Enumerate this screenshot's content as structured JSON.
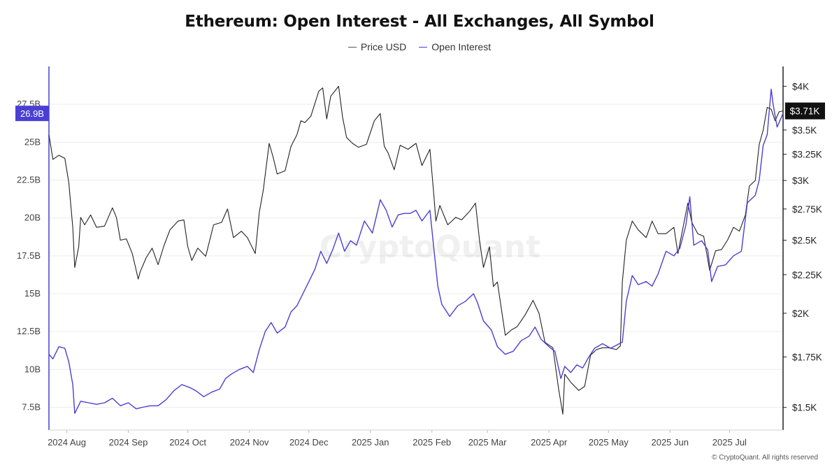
{
  "chart_data": {
    "type": "line",
    "title": "Ethereum: Open Interest - All Exchanges, All Symbol",
    "watermark": "CryptoQuant",
    "footer": "© CryptoQuant. All rights reserved",
    "x_labels": [
      "2024 Aug",
      "2024 Sep",
      "2024 Oct",
      "2024 Nov",
      "2024 Dec",
      "2025 Jan",
      "2025 Feb",
      "2025 Mar",
      "2025 Apr",
      "2025 May",
      "2025 Jun",
      "2025 Jul"
    ],
    "x_range": [
      "2024-07-23",
      "2025-07-28"
    ],
    "y_left_ticks": [
      "7.5B",
      "10B",
      "12.5B",
      "15B",
      "17.5B",
      "20B",
      "22.5B",
      "25B",
      "27.5B"
    ],
    "y_left_unit": "billions",
    "y_left_range": [
      6.0,
      30.0
    ],
    "y_right_ticks": [
      "$1.5K",
      "$1.75K",
      "$2K",
      "$2.25K",
      "$2.5K",
      "$2.75K",
      "$3K",
      "$3.25K",
      "$3.5K",
      "$4K"
    ],
    "y_right_scale": "log",
    "y_right_unit": "USD",
    "y_right_range": [
      1400,
      4250
    ],
    "left_badge": "26.9B",
    "right_badge": "$3.71K",
    "colors": {
      "price": "#222222",
      "oi": "#4a3fd4",
      "left_badge_bg": "#4a3fd4",
      "right_badge_bg": "#111111",
      "grid": "#ececec"
    },
    "series": [
      {
        "name": "Price USD",
        "axis": "right",
        "points": [
          [
            "2024-07-23",
            3450
          ],
          [
            "2024-07-25",
            3200
          ],
          [
            "2024-07-28",
            3240
          ],
          [
            "2024-07-31",
            3210
          ],
          [
            "2024-08-02",
            2980
          ],
          [
            "2024-08-04",
            2600
          ],
          [
            "2024-08-05",
            2300
          ],
          [
            "2024-08-07",
            2450
          ],
          [
            "2024-08-08",
            2680
          ],
          [
            "2024-08-10",
            2620
          ],
          [
            "2024-08-13",
            2700
          ],
          [
            "2024-08-16",
            2600
          ],
          [
            "2024-08-20",
            2610
          ],
          [
            "2024-08-24",
            2760
          ],
          [
            "2024-08-26",
            2680
          ],
          [
            "2024-08-28",
            2500
          ],
          [
            "2024-08-31",
            2510
          ],
          [
            "2024-09-03",
            2400
          ],
          [
            "2024-09-06",
            2220
          ],
          [
            "2024-09-07",
            2270
          ],
          [
            "2024-09-10",
            2370
          ],
          [
            "2024-09-13",
            2440
          ],
          [
            "2024-09-16",
            2320
          ],
          [
            "2024-09-19",
            2460
          ],
          [
            "2024-09-22",
            2580
          ],
          [
            "2024-09-26",
            2650
          ],
          [
            "2024-09-29",
            2660
          ],
          [
            "2024-10-01",
            2450
          ],
          [
            "2024-10-03",
            2350
          ],
          [
            "2024-10-06",
            2440
          ],
          [
            "2024-10-10",
            2380
          ],
          [
            "2024-10-14",
            2620
          ],
          [
            "2024-10-18",
            2640
          ],
          [
            "2024-10-21",
            2750
          ],
          [
            "2024-10-24",
            2520
          ],
          [
            "2024-10-28",
            2570
          ],
          [
            "2024-10-31",
            2520
          ],
          [
            "2024-11-04",
            2400
          ],
          [
            "2024-11-06",
            2720
          ],
          [
            "2024-11-08",
            2910
          ],
          [
            "2024-11-11",
            3360
          ],
          [
            "2024-11-13",
            3220
          ],
          [
            "2024-11-15",
            3060
          ],
          [
            "2024-11-19",
            3090
          ],
          [
            "2024-11-22",
            3330
          ],
          [
            "2024-11-25",
            3450
          ],
          [
            "2024-11-27",
            3600
          ],
          [
            "2024-11-29",
            3580
          ],
          [
            "2024-12-02",
            3650
          ],
          [
            "2024-12-06",
            3940
          ],
          [
            "2024-12-08",
            3980
          ],
          [
            "2024-12-10",
            3620
          ],
          [
            "2024-12-12",
            3880
          ],
          [
            "2024-12-16",
            4000
          ],
          [
            "2024-12-18",
            3640
          ],
          [
            "2024-12-20",
            3420
          ],
          [
            "2024-12-23",
            3360
          ],
          [
            "2024-12-26",
            3320
          ],
          [
            "2024-12-30",
            3350
          ],
          [
            "2025-01-03",
            3600
          ],
          [
            "2025-01-06",
            3680
          ],
          [
            "2025-01-08",
            3330
          ],
          [
            "2025-01-10",
            3260
          ],
          [
            "2025-01-13",
            3100
          ],
          [
            "2025-01-16",
            3340
          ],
          [
            "2025-01-20",
            3300
          ],
          [
            "2025-01-24",
            3360
          ],
          [
            "2025-01-27",
            3140
          ],
          [
            "2025-01-31",
            3300
          ],
          [
            "2025-02-02",
            2870
          ],
          [
            "2025-02-03",
            2650
          ],
          [
            "2025-02-05",
            2780
          ],
          [
            "2025-02-09",
            2620
          ],
          [
            "2025-02-13",
            2680
          ],
          [
            "2025-02-16",
            2660
          ],
          [
            "2025-02-20",
            2730
          ],
          [
            "2025-02-23",
            2800
          ],
          [
            "2025-02-25",
            2500
          ],
          [
            "2025-02-27",
            2300
          ],
          [
            "2025-03-02",
            2450
          ],
          [
            "2025-03-04",
            2170
          ],
          [
            "2025-03-06",
            2200
          ],
          [
            "2025-03-10",
            1870
          ],
          [
            "2025-03-13",
            1900
          ],
          [
            "2025-03-16",
            1920
          ],
          [
            "2025-03-20",
            1990
          ],
          [
            "2025-03-24",
            2080
          ],
          [
            "2025-03-27",
            2000
          ],
          [
            "2025-03-30",
            1830
          ],
          [
            "2025-04-03",
            1800
          ],
          [
            "2025-04-06",
            1580
          ],
          [
            "2025-04-08",
            1470
          ],
          [
            "2025-04-09",
            1660
          ],
          [
            "2025-04-12",
            1620
          ],
          [
            "2025-04-16",
            1580
          ],
          [
            "2025-04-19",
            1600
          ],
          [
            "2025-04-22",
            1760
          ],
          [
            "2025-04-25",
            1790
          ],
          [
            "2025-04-28",
            1800
          ],
          [
            "2025-05-01",
            1800
          ],
          [
            "2025-05-05",
            1790
          ],
          [
            "2025-05-07",
            1810
          ],
          [
            "2025-05-08",
            2200
          ],
          [
            "2025-05-10",
            2500
          ],
          [
            "2025-05-13",
            2650
          ],
          [
            "2025-05-16",
            2580
          ],
          [
            "2025-05-20",
            2520
          ],
          [
            "2025-05-23",
            2650
          ],
          [
            "2025-05-26",
            2550
          ],
          [
            "2025-05-30",
            2550
          ],
          [
            "2025-06-03",
            2600
          ],
          [
            "2025-06-05",
            2400
          ],
          [
            "2025-06-10",
            2800
          ],
          [
            "2025-06-12",
            2640
          ],
          [
            "2025-06-15",
            2550
          ],
          [
            "2025-06-18",
            2530
          ],
          [
            "2025-06-21",
            2280
          ],
          [
            "2025-06-24",
            2420
          ],
          [
            "2025-06-27",
            2430
          ],
          [
            "2025-06-30",
            2500
          ],
          [
            "2025-07-03",
            2600
          ],
          [
            "2025-07-06",
            2570
          ],
          [
            "2025-07-09",
            2700
          ],
          [
            "2025-07-11",
            2950
          ],
          [
            "2025-07-14",
            3000
          ],
          [
            "2025-07-16",
            3350
          ],
          [
            "2025-07-18",
            3500
          ],
          [
            "2025-07-20",
            3750
          ],
          [
            "2025-07-22",
            3730
          ],
          [
            "2025-07-24",
            3600
          ],
          [
            "2025-07-26",
            3700
          ],
          [
            "2025-07-28",
            3710
          ]
        ]
      },
      {
        "name": "Open Interest",
        "axis": "left",
        "points": [
          [
            "2024-07-23",
            11.0
          ],
          [
            "2024-07-25",
            10.7
          ],
          [
            "2024-07-28",
            11.5
          ],
          [
            "2024-07-31",
            11.4
          ],
          [
            "2024-08-02",
            10.5
          ],
          [
            "2024-08-04",
            9.0
          ],
          [
            "2024-08-05",
            7.1
          ],
          [
            "2024-08-08",
            7.9
          ],
          [
            "2024-08-12",
            7.8
          ],
          [
            "2024-08-16",
            7.7
          ],
          [
            "2024-08-20",
            7.8
          ],
          [
            "2024-08-24",
            8.1
          ],
          [
            "2024-08-28",
            7.6
          ],
          [
            "2024-09-01",
            7.8
          ],
          [
            "2024-09-05",
            7.4
          ],
          [
            "2024-09-08",
            7.5
          ],
          [
            "2024-09-12",
            7.6
          ],
          [
            "2024-09-16",
            7.6
          ],
          [
            "2024-09-20",
            8.0
          ],
          [
            "2024-09-24",
            8.6
          ],
          [
            "2024-09-28",
            9.0
          ],
          [
            "2024-10-02",
            8.8
          ],
          [
            "2024-10-05",
            8.6
          ],
          [
            "2024-10-09",
            8.2
          ],
          [
            "2024-10-13",
            8.5
          ],
          [
            "2024-10-17",
            8.7
          ],
          [
            "2024-10-20",
            9.4
          ],
          [
            "2024-10-23",
            9.7
          ],
          [
            "2024-10-27",
            10.0
          ],
          [
            "2024-10-31",
            10.2
          ],
          [
            "2024-11-03",
            9.8
          ],
          [
            "2024-11-06",
            11.3
          ],
          [
            "2024-11-09",
            12.5
          ],
          [
            "2024-11-12",
            13.1
          ],
          [
            "2024-11-15",
            12.4
          ],
          [
            "2024-11-19",
            12.8
          ],
          [
            "2024-11-22",
            13.8
          ],
          [
            "2024-11-25",
            14.2
          ],
          [
            "2024-11-28",
            15.0
          ],
          [
            "2024-12-01",
            15.8
          ],
          [
            "2024-12-04",
            16.6
          ],
          [
            "2024-12-07",
            17.8
          ],
          [
            "2024-12-10",
            17.0
          ],
          [
            "2024-12-13",
            17.9
          ],
          [
            "2024-12-16",
            19.0
          ],
          [
            "2024-12-19",
            17.8
          ],
          [
            "2024-12-22",
            18.5
          ],
          [
            "2024-12-25",
            18.2
          ],
          [
            "2024-12-29",
            19.8
          ],
          [
            "2025-01-02",
            19.0
          ],
          [
            "2025-01-06",
            21.2
          ],
          [
            "2025-01-09",
            20.5
          ],
          [
            "2025-01-12",
            19.4
          ],
          [
            "2025-01-15",
            20.2
          ],
          [
            "2025-01-18",
            20.3
          ],
          [
            "2025-01-21",
            20.3
          ],
          [
            "2025-01-24",
            20.5
          ],
          [
            "2025-01-27",
            19.8
          ],
          [
            "2025-01-31",
            20.5
          ],
          [
            "2025-02-02",
            18.0
          ],
          [
            "2025-02-04",
            15.5
          ],
          [
            "2025-02-06",
            14.3
          ],
          [
            "2025-02-10",
            13.5
          ],
          [
            "2025-02-14",
            14.2
          ],
          [
            "2025-02-18",
            14.5
          ],
          [
            "2025-02-22",
            15.0
          ],
          [
            "2025-02-24",
            14.4
          ],
          [
            "2025-02-27",
            13.2
          ],
          [
            "2025-03-03",
            12.6
          ],
          [
            "2025-03-06",
            11.5
          ],
          [
            "2025-03-10",
            11.0
          ],
          [
            "2025-03-14",
            11.2
          ],
          [
            "2025-03-18",
            11.9
          ],
          [
            "2025-03-22",
            12.2
          ],
          [
            "2025-03-25",
            12.8
          ],
          [
            "2025-03-28",
            12.0
          ],
          [
            "2025-04-01",
            11.5
          ],
          [
            "2025-04-04",
            11.2
          ],
          [
            "2025-04-07",
            9.4
          ],
          [
            "2025-04-09",
            10.2
          ],
          [
            "2025-04-12",
            9.8
          ],
          [
            "2025-04-15",
            10.3
          ],
          [
            "2025-04-18",
            10.1
          ],
          [
            "2025-04-21",
            10.8
          ],
          [
            "2025-04-24",
            11.4
          ],
          [
            "2025-04-28",
            11.7
          ],
          [
            "2025-05-02",
            11.4
          ],
          [
            "2025-05-05",
            11.6
          ],
          [
            "2025-05-08",
            11.8
          ],
          [
            "2025-05-10",
            14.5
          ],
          [
            "2025-05-13",
            16.2
          ],
          [
            "2025-05-16",
            15.6
          ],
          [
            "2025-05-20",
            15.8
          ],
          [
            "2025-05-23",
            15.5
          ],
          [
            "2025-05-26",
            16.3
          ],
          [
            "2025-05-30",
            17.8
          ],
          [
            "2025-06-03",
            17.5
          ],
          [
            "2025-06-06",
            18.0
          ],
          [
            "2025-06-09",
            19.5
          ],
          [
            "2025-06-11",
            21.4
          ],
          [
            "2025-06-13",
            18.2
          ],
          [
            "2025-06-17",
            18.5
          ],
          [
            "2025-06-20",
            17.9
          ],
          [
            "2025-06-22",
            15.8
          ],
          [
            "2025-06-25",
            16.8
          ],
          [
            "2025-06-29",
            16.9
          ],
          [
            "2025-07-03",
            17.5
          ],
          [
            "2025-07-07",
            17.8
          ],
          [
            "2025-07-10",
            21.0
          ],
          [
            "2025-07-14",
            21.5
          ],
          [
            "2025-07-16",
            22.5
          ],
          [
            "2025-07-18",
            24.8
          ],
          [
            "2025-07-20",
            25.5
          ],
          [
            "2025-07-22",
            28.5
          ],
          [
            "2025-07-23",
            27.5
          ],
          [
            "2025-07-25",
            26.0
          ],
          [
            "2025-07-28",
            26.9
          ]
        ]
      }
    ]
  }
}
